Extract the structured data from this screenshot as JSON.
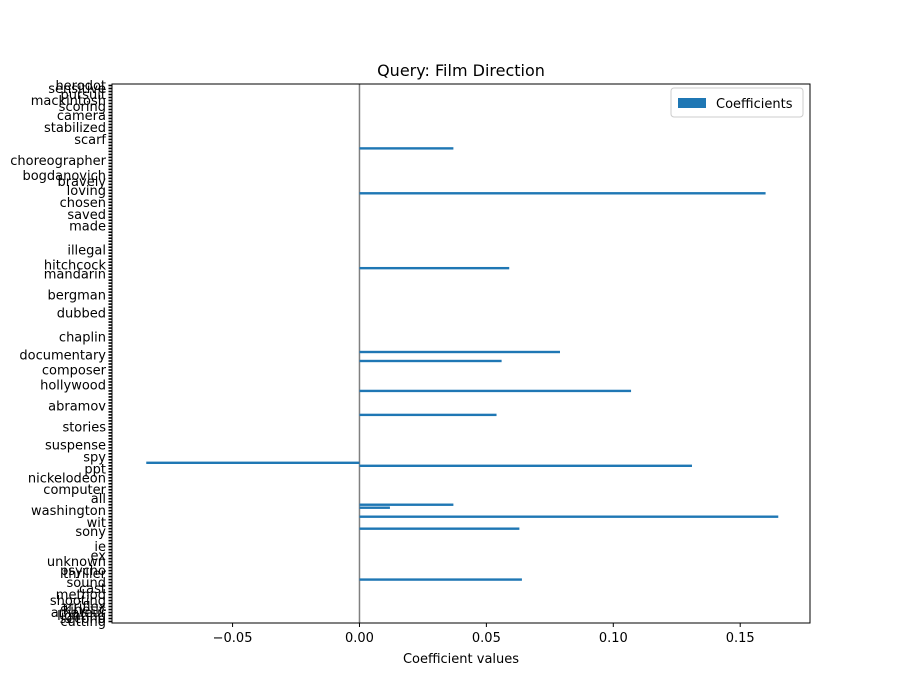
{
  "chart_data": {
    "type": "bar",
    "orientation": "horizontal",
    "title": "Query: Film Direction",
    "xlabel": "Coefficient values",
    "ylabel": "",
    "xlim": [
      -0.0975,
      0.1775
    ],
    "xticks": [
      -0.05,
      0.0,
      0.05,
      0.1,
      0.15
    ],
    "xtick_labels": [
      "−0.05",
      "0.00",
      "0.05",
      "0.10",
      "0.15"
    ],
    "zero_line": true,
    "legend": {
      "label": "Coefficients",
      "placement": "top-right"
    },
    "bar_color": "#1f77b4",
    "n_features": 180,
    "nonzero_bars": [
      {
        "index": 21,
        "value": 0.037
      },
      {
        "index": 36,
        "value": 0.16
      },
      {
        "index": 61,
        "value": 0.059
      },
      {
        "index": 89,
        "value": 0.079
      },
      {
        "index": 92,
        "value": 0.056
      },
      {
        "index": 102,
        "value": 0.107
      },
      {
        "index": 110,
        "value": 0.054
      },
      {
        "index": 126,
        "value": -0.084
      },
      {
        "index": 127,
        "value": 0.131
      },
      {
        "index": 140,
        "value": 0.037
      },
      {
        "index": 141,
        "value": 0.012
      },
      {
        "index": 144,
        "value": 0.165
      },
      {
        "index": 148,
        "value": 0.063
      },
      {
        "index": 165,
        "value": 0.064
      }
    ],
    "visible_ytick_labels": [
      {
        "index": 0,
        "text": "herodot"
      },
      {
        "index": 1,
        "text": "sensitive"
      },
      {
        "index": 3,
        "text": "pursuit"
      },
      {
        "index": 5,
        "text": "mackintosh"
      },
      {
        "index": 7,
        "text": "scoring"
      },
      {
        "index": 10,
        "text": "camera"
      },
      {
        "index": 14,
        "text": "stabilized"
      },
      {
        "index": 18,
        "text": "scarf"
      },
      {
        "index": 25,
        "text": "choreographer"
      },
      {
        "index": 30,
        "text": "bogdanovich"
      },
      {
        "index": 32,
        "text": "bravely"
      },
      {
        "index": 35,
        "text": "loving"
      },
      {
        "index": 39,
        "text": "chosen"
      },
      {
        "index": 43,
        "text": "saved"
      },
      {
        "index": 47,
        "text": "made"
      },
      {
        "index": 55,
        "text": "illegal"
      },
      {
        "index": 60,
        "text": "hitchcock"
      },
      {
        "index": 63,
        "text": "mandarin"
      },
      {
        "index": 70,
        "text": "bergman"
      },
      {
        "index": 76,
        "text": "dubbed"
      },
      {
        "index": 84,
        "text": "chaplin"
      },
      {
        "index": 90,
        "text": "documentary"
      },
      {
        "index": 95,
        "text": "composer"
      },
      {
        "index": 100,
        "text": "hollywood"
      },
      {
        "index": 107,
        "text": "abramov"
      },
      {
        "index": 114,
        "text": "stories"
      },
      {
        "index": 120,
        "text": "suspense"
      },
      {
        "index": 124,
        "text": "spy"
      },
      {
        "index": 128,
        "text": "ppt"
      },
      {
        "index": 131,
        "text": "nickelodeon"
      },
      {
        "index": 135,
        "text": "computer"
      },
      {
        "index": 138,
        "text": "all"
      },
      {
        "index": 142,
        "text": "washington"
      },
      {
        "index": 146,
        "text": "wit"
      },
      {
        "index": 149,
        "text": "sony"
      },
      {
        "index": 154,
        "text": "ie"
      },
      {
        "index": 157,
        "text": "ex"
      },
      {
        "index": 159,
        "text": "unknown"
      },
      {
        "index": 162,
        "text": "psycho"
      },
      {
        "index": 163,
        "text": "thriller"
      },
      {
        "index": 166,
        "text": "sound"
      },
      {
        "index": 168,
        "text": "cast"
      },
      {
        "index": 170,
        "text": "method"
      },
      {
        "index": 172,
        "text": "shooting"
      },
      {
        "index": 174,
        "text": "arriflex"
      },
      {
        "index": 175,
        "text": "kinetic"
      },
      {
        "index": 176,
        "text": "amateur"
      },
      {
        "index": 177,
        "text": "lighting"
      },
      {
        "index": 178,
        "text": "second"
      },
      {
        "index": 179,
        "text": "cutting"
      }
    ]
  }
}
